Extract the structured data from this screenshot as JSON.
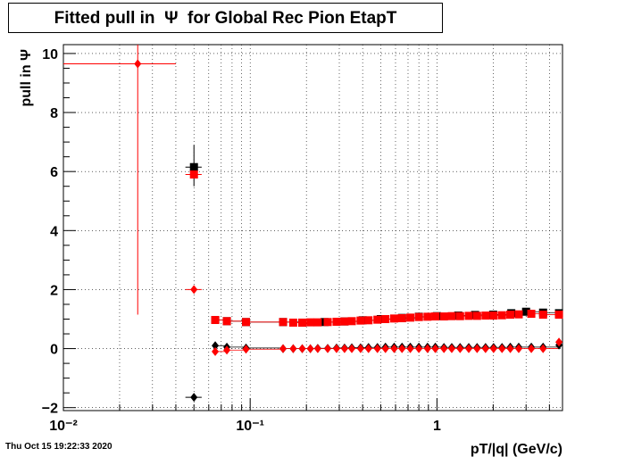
{
  "title": "Fitted pull in  Ψ  for Global Rec Pion EtapT",
  "timestamp": "Thu Oct 15 19:22:33 2020",
  "colors": {
    "series_black": "#000000",
    "series_red": "#ff0000",
    "grid": "#000000"
  },
  "chart_data": {
    "type": "scatter",
    "title": "Fitted pull in  Ψ  for Global Rec Pion EtapT",
    "xlabel": "pT/|q| (GeV/c)",
    "ylabel": "pull in  Ψ",
    "xscale": "log",
    "xlim": [
      0.01,
      4.7
    ],
    "ylim": [
      -2.1,
      10.3
    ],
    "grid": true,
    "x_tick_labels": [
      "10⁻²",
      "10⁻¹",
      "1"
    ],
    "y_tick_labels": [
      "−2",
      "0",
      "2",
      "4",
      "6",
      "8",
      "10"
    ],
    "series": [
      {
        "color": "black",
        "marker": "diamond",
        "points": [
          {
            "x": 0.05,
            "y": -1.65,
            "xerr": [
              0.045,
              0.055
            ]
          },
          {
            "x": 0.065,
            "y": 0.1
          },
          {
            "x": 0.075,
            "y": 0.05
          },
          {
            "x": 0.095,
            "y": 0.02
          },
          {
            "x": 0.15,
            "y": 0.0
          },
          {
            "x": 0.17,
            "y": 0.0
          },
          {
            "x": 0.19,
            "y": 0.0
          },
          {
            "x": 0.21,
            "y": 0.0
          },
          {
            "x": 0.23,
            "y": 0.01
          },
          {
            "x": 0.26,
            "y": 0.01
          },
          {
            "x": 0.29,
            "y": 0.02
          },
          {
            "x": 0.32,
            "y": 0.02
          },
          {
            "x": 0.35,
            "y": 0.03
          },
          {
            "x": 0.39,
            "y": 0.03
          },
          {
            "x": 0.43,
            "y": 0.04
          },
          {
            "x": 0.48,
            "y": 0.04
          },
          {
            "x": 0.53,
            "y": 0.05
          },
          {
            "x": 0.59,
            "y": 0.05
          },
          {
            "x": 0.65,
            "y": 0.05
          },
          {
            "x": 0.72,
            "y": 0.05
          },
          {
            "x": 0.8,
            "y": 0.05
          },
          {
            "x": 0.89,
            "y": 0.05
          },
          {
            "x": 0.98,
            "y": 0.05
          },
          {
            "x": 1.09,
            "y": 0.04
          },
          {
            "x": 1.2,
            "y": 0.04
          },
          {
            "x": 1.33,
            "y": 0.04
          },
          {
            "x": 1.48,
            "y": 0.04
          },
          {
            "x": 1.64,
            "y": 0.04
          },
          {
            "x": 1.82,
            "y": 0.04
          },
          {
            "x": 2.01,
            "y": 0.04
          },
          {
            "x": 2.23,
            "y": 0.04
          },
          {
            "x": 2.47,
            "y": 0.05
          },
          {
            "x": 2.74,
            "y": 0.05
          },
          {
            "x": 3.2,
            "y": 0.05
          },
          {
            "x": 3.7,
            "y": 0.05
          },
          {
            "x": 4.5,
            "y": 0.12
          }
        ]
      },
      {
        "color": "black",
        "marker": "square",
        "points": [
          {
            "x": 0.05,
            "y": 6.15,
            "xerr": [
              0.045,
              0.055
            ],
            "yerr": [
              5.5,
              6.9
            ]
          },
          {
            "x": 0.065,
            "y": 0.97
          },
          {
            "x": 0.075,
            "y": 0.93
          },
          {
            "x": 0.095,
            "y": 0.9
          },
          {
            "x": 0.15,
            "y": 0.9
          },
          {
            "x": 0.19,
            "y": 0.88
          },
          {
            "x": 0.25,
            "y": 0.9
          },
          {
            "x": 0.32,
            "y": 0.92
          },
          {
            "x": 0.4,
            "y": 0.96
          },
          {
            "x": 0.5,
            "y": 1.0
          },
          {
            "x": 0.65,
            "y": 1.04
          },
          {
            "x": 0.8,
            "y": 1.08
          },
          {
            "x": 1.0,
            "y": 1.1
          },
          {
            "x": 1.3,
            "y": 1.12
          },
          {
            "x": 1.6,
            "y": 1.14
          },
          {
            "x": 2.0,
            "y": 1.15
          },
          {
            "x": 2.5,
            "y": 1.2
          },
          {
            "x": 3.0,
            "y": 1.25
          },
          {
            "x": 3.7,
            "y": 1.22
          },
          {
            "x": 4.5,
            "y": 1.2
          }
        ]
      },
      {
        "color": "red",
        "marker": "diamond",
        "points": [
          {
            "x": 0.025,
            "y": 9.65,
            "xerr": [
              0.01,
              0.04
            ],
            "yerr": [
              1.15,
              10.3
            ]
          },
          {
            "x": 0.05,
            "y": 2.0,
            "xerr": [
              0.045,
              0.055
            ]
          },
          {
            "x": 0.065,
            "y": -0.1
          },
          {
            "x": 0.075,
            "y": -0.05
          },
          {
            "x": 0.095,
            "y": -0.02
          },
          {
            "x": 0.15,
            "y": 0.0
          },
          {
            "x": 0.17,
            "y": 0.0
          },
          {
            "x": 0.19,
            "y": 0.0
          },
          {
            "x": 0.21,
            "y": 0.0
          },
          {
            "x": 0.23,
            "y": 0.0
          },
          {
            "x": 0.26,
            "y": 0.0
          },
          {
            "x": 0.29,
            "y": 0.0
          },
          {
            "x": 0.32,
            "y": 0.0
          },
          {
            "x": 0.35,
            "y": 0.0
          },
          {
            "x": 0.39,
            "y": 0.0
          },
          {
            "x": 0.43,
            "y": 0.0
          },
          {
            "x": 0.48,
            "y": 0.0
          },
          {
            "x": 0.53,
            "y": 0.0
          },
          {
            "x": 0.59,
            "y": 0.0
          },
          {
            "x": 0.65,
            "y": 0.0
          },
          {
            "x": 0.72,
            "y": 0.0
          },
          {
            "x": 0.8,
            "y": 0.0
          },
          {
            "x": 0.89,
            "y": 0.0
          },
          {
            "x": 0.98,
            "y": 0.0
          },
          {
            "x": 1.09,
            "y": 0.0
          },
          {
            "x": 1.2,
            "y": 0.0
          },
          {
            "x": 1.33,
            "y": 0.0
          },
          {
            "x": 1.48,
            "y": 0.0
          },
          {
            "x": 1.64,
            "y": 0.0
          },
          {
            "x": 1.82,
            "y": 0.0
          },
          {
            "x": 2.01,
            "y": 0.0
          },
          {
            "x": 2.23,
            "y": 0.0
          },
          {
            "x": 2.47,
            "y": 0.0
          },
          {
            "x": 2.74,
            "y": 0.0
          },
          {
            "x": 3.2,
            "y": 0.0
          },
          {
            "x": 3.7,
            "y": 0.0
          },
          {
            "x": 4.5,
            "y": 0.22
          }
        ]
      },
      {
        "color": "red",
        "marker": "square",
        "points": [
          {
            "x": 0.05,
            "y": 5.9,
            "xerr": [
              0.045,
              0.055
            ]
          },
          {
            "x": 0.065,
            "y": 0.97
          },
          {
            "x": 0.075,
            "y": 0.93
          },
          {
            "x": 0.095,
            "y": 0.9
          },
          {
            "x": 0.15,
            "y": 0.9
          },
          {
            "x": 0.17,
            "y": 0.88
          },
          {
            "x": 0.19,
            "y": 0.88
          },
          {
            "x": 0.21,
            "y": 0.89
          },
          {
            "x": 0.23,
            "y": 0.89
          },
          {
            "x": 0.26,
            "y": 0.9
          },
          {
            "x": 0.29,
            "y": 0.91
          },
          {
            "x": 0.32,
            "y": 0.92
          },
          {
            "x": 0.35,
            "y": 0.93
          },
          {
            "x": 0.39,
            "y": 0.95
          },
          {
            "x": 0.43,
            "y": 0.96
          },
          {
            "x": 0.48,
            "y": 0.98
          },
          {
            "x": 0.53,
            "y": 1.0
          },
          {
            "x": 0.59,
            "y": 1.02
          },
          {
            "x": 0.65,
            "y": 1.03
          },
          {
            "x": 0.72,
            "y": 1.05
          },
          {
            "x": 0.8,
            "y": 1.07
          },
          {
            "x": 0.89,
            "y": 1.08
          },
          {
            "x": 0.98,
            "y": 1.09
          },
          {
            "x": 1.09,
            "y": 1.09
          },
          {
            "x": 1.2,
            "y": 1.1
          },
          {
            "x": 1.33,
            "y": 1.1
          },
          {
            "x": 1.48,
            "y": 1.11
          },
          {
            "x": 1.64,
            "y": 1.11
          },
          {
            "x": 1.82,
            "y": 1.12
          },
          {
            "x": 2.01,
            "y": 1.12
          },
          {
            "x": 2.23,
            "y": 1.13
          },
          {
            "x": 2.47,
            "y": 1.15
          },
          {
            "x": 2.74,
            "y": 1.16
          },
          {
            "x": 3.2,
            "y": 1.18
          },
          {
            "x": 3.7,
            "y": 1.15
          },
          {
            "x": 4.5,
            "y": 1.15
          }
        ]
      }
    ]
  }
}
